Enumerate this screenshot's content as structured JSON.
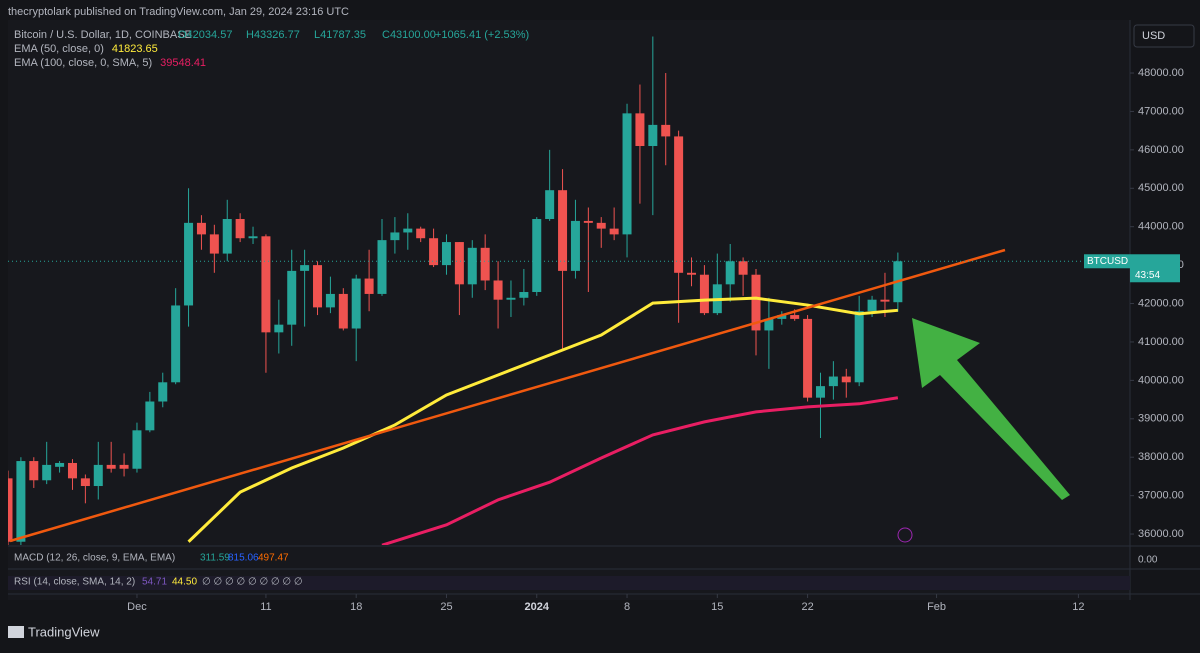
{
  "header": {
    "publisher": "thecryptolark published on TradingView.com, Jan 29, 2024 23:16 UTC",
    "symbol": "Bitcoin / U.S. Dollar, 1D, COINBASE",
    "open": "O42034.57",
    "high": "H43326.77",
    "low": "L41787.35",
    "close": "C43100.00",
    "change": "+1065.41 (+2.53%)",
    "currency": "USD",
    "last_label": "BTCUSD",
    "countdown": "43:54",
    "macd": {
      "name": "MACD (12, 26, close, 9, EMA, EMA)",
      "v1": "311.59",
      "v2": "815.06",
      "v3": "497.47",
      "zero": "0.00"
    },
    "rsi": {
      "name": "RSI (14, close, SMA, 14, 2)",
      "v1": "54.71",
      "v2": "44.50",
      "empty": "∅ ∅ ∅ ∅ ∅ ∅ ∅ ∅ ∅"
    },
    "brand": "TradingView"
  },
  "chart_data": {
    "type": "candlestick",
    "up_color": "#26a69a",
    "down_color": "#ef5350",
    "grid": false,
    "x": [
      "2023-11-21",
      "2023-11-22",
      "2023-11-23",
      "2023-11-24",
      "2023-11-25",
      "2023-11-26",
      "2023-11-27",
      "2023-11-28",
      "2023-11-29",
      "2023-11-30",
      "2023-12-01",
      "2023-12-02",
      "2023-12-03",
      "2023-12-04",
      "2023-12-05",
      "2023-12-06",
      "2023-12-07",
      "2023-12-08",
      "2023-12-09",
      "2023-12-10",
      "2023-12-11",
      "2023-12-12",
      "2023-12-13",
      "2023-12-14",
      "2023-12-15",
      "2023-12-16",
      "2023-12-17",
      "2023-12-18",
      "2023-12-19",
      "2023-12-20",
      "2023-12-21",
      "2023-12-22",
      "2023-12-23",
      "2023-12-24",
      "2023-12-25",
      "2023-12-26",
      "2023-12-27",
      "2023-12-28",
      "2023-12-29",
      "2023-12-30",
      "2023-12-31",
      "2024-01-01",
      "2024-01-02",
      "2024-01-03",
      "2024-01-04",
      "2024-01-05",
      "2024-01-06",
      "2024-01-07",
      "2024-01-08",
      "2024-01-09",
      "2024-01-10",
      "2024-01-11",
      "2024-01-12",
      "2024-01-13",
      "2024-01-14",
      "2024-01-15",
      "2024-01-16",
      "2024-01-17",
      "2024-01-18",
      "2024-01-19",
      "2024-01-20",
      "2024-01-21",
      "2024-01-22",
      "2024-01-23",
      "2024-01-24",
      "2024-01-25",
      "2024-01-26",
      "2024-01-27",
      "2024-01-28",
      "2024-01-29"
    ],
    "open": [
      37450,
      35800,
      37900,
      37400,
      37750,
      37850,
      37450,
      37250,
      37800,
      37800,
      37700,
      38700,
      39450,
      39950,
      41950,
      44100,
      43800,
      43300,
      44200,
      43700,
      43750,
      41250,
      41450,
      42850,
      43000,
      41900,
      42250,
      41350,
      42650,
      42250,
      43650,
      43850,
      43950,
      43700,
      43000,
      43600,
      42500,
      43450,
      42600,
      42100,
      42150,
      42300,
      44200,
      44950,
      42850,
      44150,
      44100,
      43950,
      43800,
      46950,
      46100,
      46650,
      46350,
      42800,
      42750,
      41750,
      42500,
      43100,
      42750,
      41300,
      41600,
      41700,
      41600,
      39550,
      39850,
      40100,
      39950,
      41800,
      42100,
      42034.57
    ],
    "high": [
      37650,
      38000,
      38000,
      38400,
      37900,
      37950,
      37550,
      38400,
      38400,
      38100,
      38900,
      39700,
      40200,
      42400,
      45000,
      44300,
      44050,
      44700,
      44350,
      44000,
      43800,
      42100,
      43400,
      43400,
      43100,
      42700,
      42400,
      42750,
      43400,
      44200,
      44250,
      44350,
      44000,
      43950,
      43800,
      43600,
      43650,
      43800,
      43100,
      42600,
      42900,
      44250,
      46000,
      45500,
      44700,
      44500,
      44250,
      44500,
      47200,
      47700,
      48950,
      48000,
      46500,
      43200,
      43000,
      43300,
      43550,
      43200,
      42900,
      42150,
      41800,
      41850,
      41700,
      40200,
      40500,
      40300,
      42200,
      42200,
      42800,
      43326.77
    ],
    "low": [
      35700,
      35650,
      37200,
      37300,
      37600,
      37150,
      36800,
      36900,
      37600,
      37500,
      37600,
      38650,
      39300,
      39900,
      41400,
      43400,
      42800,
      43100,
      43600,
      43550,
      40200,
      40700,
      40900,
      41400,
      41700,
      41750,
      41300,
      40500,
      41800,
      42200,
      43300,
      43400,
      43600,
      42950,
      42750,
      41700,
      42150,
      42350,
      41350,
      41650,
      41950,
      42200,
      44150,
      40800,
      42650,
      42300,
      43450,
      43650,
      43200,
      44600,
      44300,
      45600,
      41500,
      42450,
      41700,
      41700,
      42050,
      42200,
      40650,
      40300,
      41450,
      41550,
      39450,
      38500,
      39500,
      39550,
      39850,
      41650,
      41650,
      41787.35
    ],
    "close": [
      35800,
      37900,
      37400,
      37800,
      37850,
      37450,
      37250,
      37800,
      37700,
      37700,
      38700,
      39450,
      39950,
      41950,
      44100,
      43800,
      43300,
      44200,
      43700,
      43750,
      41250,
      41450,
      42850,
      43000,
      41900,
      42250,
      41350,
      42650,
      42250,
      43650,
      43850,
      43950,
      43700,
      43000,
      43600,
      42500,
      43450,
      42600,
      42100,
      42150,
      42300,
      44200,
      44950,
      42850,
      44150,
      44100,
      43950,
      43800,
      46950,
      46100,
      46650,
      46350,
      42800,
      42750,
      41750,
      42500,
      43100,
      42750,
      41300,
      41600,
      41700,
      41600,
      39550,
      39850,
      40100,
      39950,
      41800,
      42100,
      42050,
      43100
    ],
    "series": [
      {
        "name": "EMA (50, close, 0)",
        "color": "#ffeb3b",
        "x": [
          "2023-12-05",
          "2023-12-09",
          "2023-12-13",
          "2023-12-17",
          "2023-12-21",
          "2023-12-25",
          "2023-12-29",
          "2024-01-02",
          "2024-01-06",
          "2024-01-10",
          "2024-01-14",
          "2024-01-18",
          "2024-01-22",
          "2024-01-26",
          "2024-01-29"
        ],
        "values": [
          35800,
          37090,
          37720,
          38240,
          38840,
          39620,
          40140,
          40660,
          41180,
          42010,
          42090,
          42140,
          41960,
          41730,
          41823.65
        ]
      },
      {
        "name": "EMA (100, close, 0, SMA, 5)",
        "color": "#e91e63",
        "x": [
          "2023-12-20",
          "2023-12-25",
          "2023-12-29",
          "2024-01-02",
          "2024-01-06",
          "2024-01-10",
          "2024-01-14",
          "2024-01-18",
          "2024-01-22",
          "2024-01-26",
          "2024-01-29"
        ],
        "values": [
          35710,
          36240,
          36890,
          37350,
          37980,
          38580,
          38920,
          39180,
          39310,
          39390,
          39548.41
        ]
      }
    ],
    "xlim": [
      "2023-11-21",
      "2024-02-16"
    ],
    "xticks": [
      {
        "value": "2023-12-01",
        "label": "Dec"
      },
      {
        "value": "2023-12-11",
        "label": "11"
      },
      {
        "value": "2023-12-18",
        "label": "18"
      },
      {
        "value": "2023-12-25",
        "label": "25"
      },
      {
        "value": "2024-01-01",
        "label": "2024"
      },
      {
        "value": "2024-01-08",
        "label": "8"
      },
      {
        "value": "2024-01-15",
        "label": "15"
      },
      {
        "value": "2024-01-22",
        "label": "22"
      },
      {
        "value": "2024-02-01",
        "label": "Feb"
      },
      {
        "value": "2024-02-12",
        "label": "12"
      }
    ],
    "ylim": [
      35715,
      49380
    ],
    "yticks": [
      {
        "value": 36000,
        "label": "36000.00"
      },
      {
        "value": 37000,
        "label": "37000.00"
      },
      {
        "value": 38000,
        "label": "38000.00"
      },
      {
        "value": 39000,
        "label": "39000.00"
      },
      {
        "value": 40000,
        "label": "40000.00"
      },
      {
        "value": 41000,
        "label": "41000.00"
      },
      {
        "value": 42000,
        "label": "42000.00"
      },
      {
        "value": 43000,
        "label": "43000.00"
      },
      {
        "value": 44000,
        "label": "44000.00"
      },
      {
        "value": 45000,
        "label": "45000.00"
      },
      {
        "value": 46000,
        "label": "46000.00"
      },
      {
        "value": 47000,
        "label": "47000.00"
      },
      {
        "value": 48000,
        "label": "48000.00"
      }
    ]
  }
}
